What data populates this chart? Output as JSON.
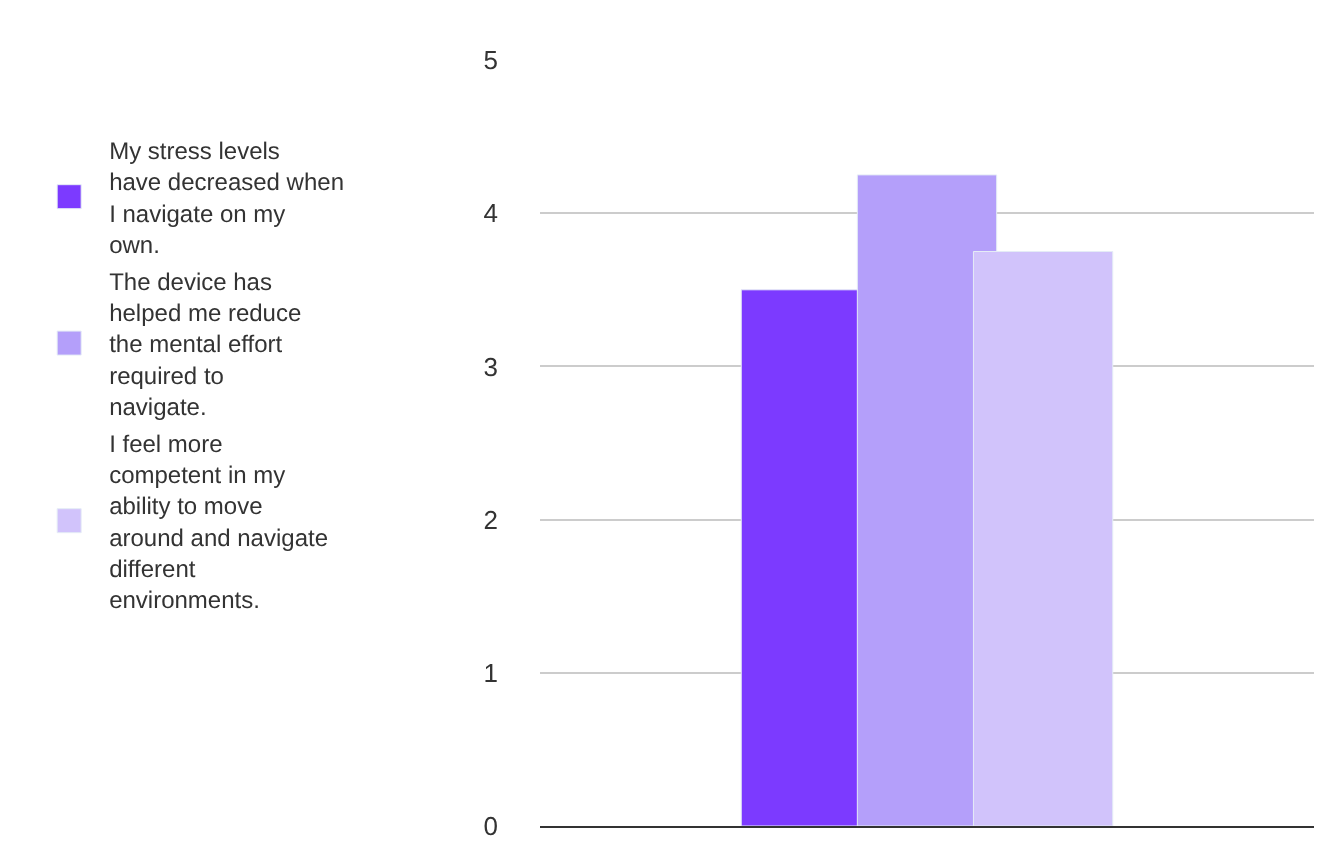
{
  "chart_data": {
    "type": "bar",
    "categories": [
      null
    ],
    "series": [
      {
        "name": "My stress levels have decreased when I navigate on my own.",
        "color": "#7c3aff",
        "values": [
          3.5
        ]
      },
      {
        "name": "The device has helped me reduce the mental effort required to navigate.",
        "color": "#b49ffa",
        "values": [
          4.25
        ]
      },
      {
        "name": "I feel more competent in my ability to move around and navigate different environments.",
        "color": "#d1c3fb",
        "values": [
          3.75
        ]
      }
    ],
    "ylim": [
      0,
      5
    ],
    "yticks": [
      0,
      1,
      2,
      3,
      4,
      5
    ],
    "grid": "y",
    "legend": "left"
  }
}
